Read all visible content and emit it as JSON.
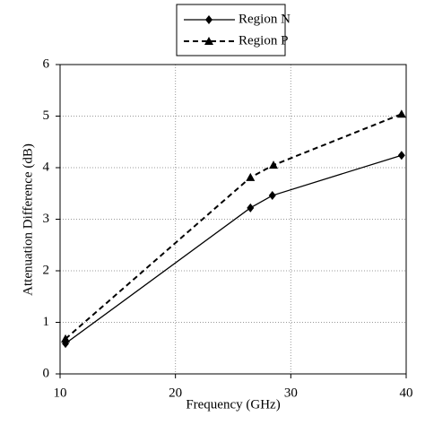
{
  "chart_data": {
    "type": "line",
    "xlabel": "Frequency (GHz)",
    "ylabel": "Attenuation Difference (dB)",
    "xlim": [
      10,
      40
    ],
    "xticks": [
      10,
      20,
      30,
      40
    ],
    "ylim": [
      0,
      6
    ],
    "yticks": [
      0,
      1,
      2,
      3,
      4,
      5,
      6
    ],
    "grid": true,
    "legend": "top",
    "series": [
      {
        "name": "Region N",
        "color": "#000000",
        "dash": false,
        "marker": "diamond",
        "x": [
          10.47,
          26.5,
          28.4,
          39.6
        ],
        "values": [
          0.59,
          3.22,
          3.46,
          4.24
        ]
      },
      {
        "name": "Region P",
        "color": "#000000",
        "dash": true,
        "marker": "triangle",
        "x": [
          10.47,
          26.5,
          28.5,
          39.6
        ],
        "values": [
          0.68,
          3.81,
          4.05,
          5.04
        ]
      }
    ]
  }
}
